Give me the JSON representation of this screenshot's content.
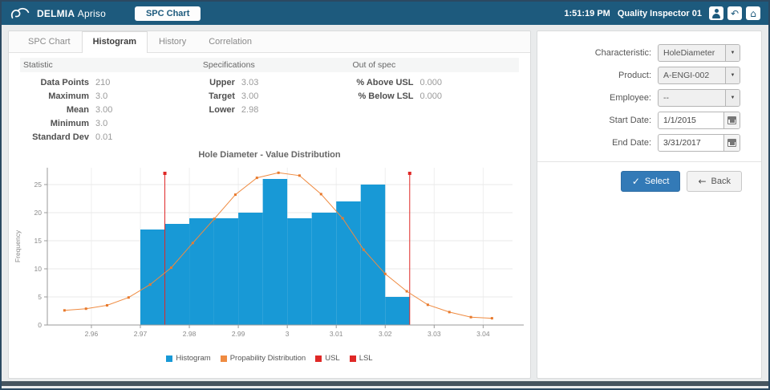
{
  "header": {
    "brand_delmia": "DELMIA",
    "brand_apriso": "Apriso",
    "nav_tab": "SPC Chart",
    "time": "1:51:19 PM",
    "user": "Quality Inspector 01"
  },
  "tabs": [
    {
      "label": "SPC Chart",
      "active": false
    },
    {
      "label": "Histogram",
      "active": true
    },
    {
      "label": "History",
      "active": false
    },
    {
      "label": "Correlation",
      "active": false
    }
  ],
  "stats": {
    "columns": [
      {
        "header": "Statistic",
        "rows": [
          [
            "Data Points",
            "210"
          ],
          [
            "Maximum",
            "3.0"
          ],
          [
            "Mean",
            "3.00"
          ],
          [
            "Minimum",
            "3.0"
          ],
          [
            "Standard Dev",
            "0.01"
          ]
        ]
      },
      {
        "header": "Specifications",
        "rows": [
          [
            "Upper",
            "3.03"
          ],
          [
            "Target",
            "3.00"
          ],
          [
            "Lower",
            "2.98"
          ]
        ]
      },
      {
        "header": "Out of spec",
        "rows": [
          [
            "% Above USL",
            "0.000"
          ],
          [
            "% Below LSL",
            "0.000"
          ]
        ]
      }
    ]
  },
  "chart_data": {
    "type": "bar",
    "title": "Hole Diameter - Value Distribution",
    "xlabel": "",
    "ylabel": "Frequency",
    "xlim": [
      2.951,
      3.046
    ],
    "ylim": [
      0,
      28
    ],
    "xticks": [
      2.96,
      2.97,
      2.98,
      2.99,
      3,
      3.01,
      3.02,
      3.03,
      3.04
    ],
    "yticks": [
      0,
      5,
      10,
      15,
      20,
      25
    ],
    "grid": true,
    "histogram": {
      "bin_start": 2.97,
      "bin_width": 0.005,
      "frequencies": [
        17,
        18,
        19,
        19,
        20,
        26,
        19,
        20,
        22,
        25,
        5
      ]
    },
    "probability_distribution": {
      "x": [
        2.9545,
        2.9589,
        2.9632,
        2.9676,
        2.972,
        2.9763,
        2.9807,
        2.9851,
        2.9894,
        2.9938,
        2.9982,
        3.0025,
        3.0069,
        3.0113,
        3.0156,
        3.02,
        3.0244,
        3.0287,
        3.0331,
        3.0375,
        3.0418
      ],
      "y": [
        2.6,
        2.9,
        3.5,
        4.9,
        7.2,
        10.2,
        14.6,
        18.9,
        23.2,
        26.2,
        27.1,
        26.6,
        23.3,
        19.0,
        13.4,
        9.1,
        6.0,
        3.6,
        2.3,
        1.4,
        1.2
      ]
    },
    "lsl_line": {
      "x": 2.975,
      "top": 27
    },
    "usl_line": {
      "x": 3.025,
      "top": 27
    },
    "legend": [
      {
        "label": "Histogram",
        "color": "#1899d6"
      },
      {
        "label": "Propability Distribution",
        "color": "#ef8b41"
      },
      {
        "label": "USL",
        "color": "#df2826"
      },
      {
        "label": "LSL",
        "color": "#df2826"
      }
    ],
    "legend_position": "bottom",
    "colors": {
      "bar": "#1899d6",
      "curve": "#ef8b41",
      "curve_marker": "#e87a2d",
      "limit": "#df2826"
    }
  },
  "form": {
    "fields": [
      {
        "label": "Characteristic:",
        "value": "HoleDiameter",
        "type": "select"
      },
      {
        "label": "Product:",
        "value": "A-ENGI-002",
        "type": "select"
      },
      {
        "label": "Employee:",
        "value": "--",
        "type": "select"
      },
      {
        "label": "Start Date:",
        "value": "1/1/2015",
        "type": "date"
      },
      {
        "label": "End Date:",
        "value": "3/31/2017",
        "type": "date"
      }
    ],
    "select_label": "Select",
    "back_label": "Back"
  }
}
